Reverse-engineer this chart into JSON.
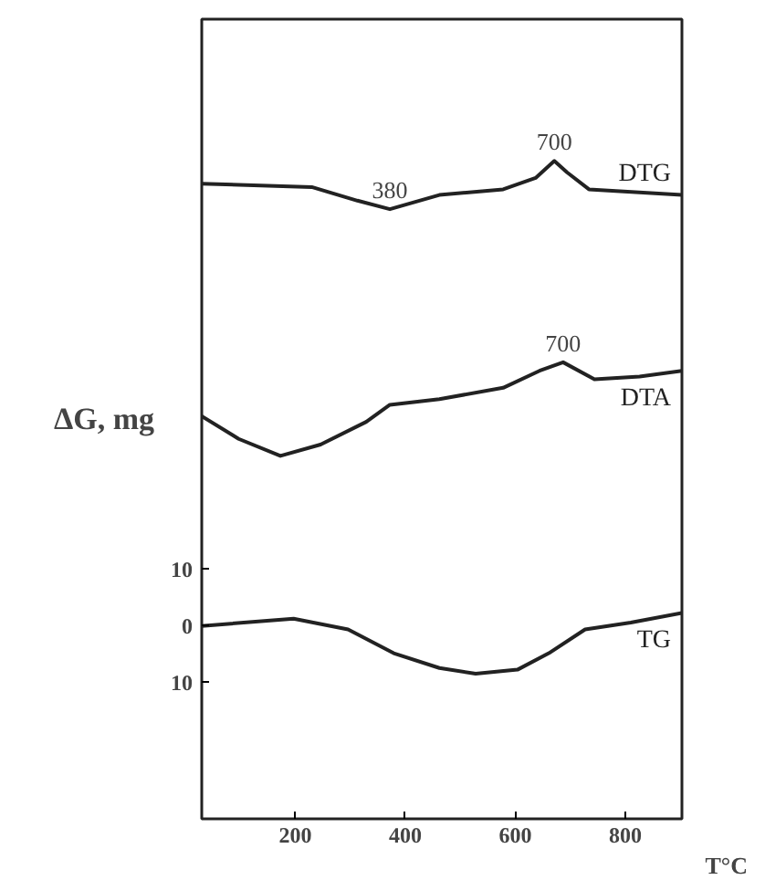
{
  "chart_data": {
    "type": "line",
    "ylabel": "ΔG, mg",
    "xlabel": "T°C",
    "xlim": [
      30,
      903
    ],
    "ylim": [
      -34,
      107
    ],
    "xticks": [
      200,
      400,
      600,
      800
    ],
    "yticks": [
      10,
      0,
      {
        "value": -10,
        "label": "10"
      }
    ],
    "grid": false,
    "marker": "none",
    "line_style": "solid",
    "series": [
      {
        "name": "DTG",
        "color": "#222222",
        "x": [
          30,
          230,
          313,
          372,
          462,
          578,
          637,
          671,
          694,
          734,
          903
        ],
        "values": [
          78,
          77.4,
          75,
          73.5,
          76,
          77,
          79,
          82,
          80,
          77,
          76
        ]
      },
      {
        "name": "DTA",
        "color": "#222222",
        "x": [
          30,
          97,
          173,
          246,
          329,
          372,
          462,
          578,
          644,
          687,
          744,
          826,
          903
        ],
        "values": [
          37,
          33,
          30,
          32,
          36,
          39,
          40,
          42,
          45,
          46.5,
          43.5,
          44,
          45
        ]
      },
      {
        "name": "TG",
        "color": "#222222",
        "x": [
          30,
          197,
          296,
          379,
          462,
          528,
          604,
          661,
          727,
          810,
          903
        ],
        "values": [
          0,
          1.3,
          -0.6,
          -4.8,
          -7.4,
          -8.4,
          -7.7,
          -4.8,
          -0.6,
          0.6,
          2.3
        ]
      }
    ],
    "annotations": [
      {
        "text": "380",
        "x": 372,
        "y": 73.5
      },
      {
        "text": "700",
        "x": 671,
        "y": 82
      },
      {
        "text": "700",
        "x": 687,
        "y": 46.5
      }
    ]
  }
}
